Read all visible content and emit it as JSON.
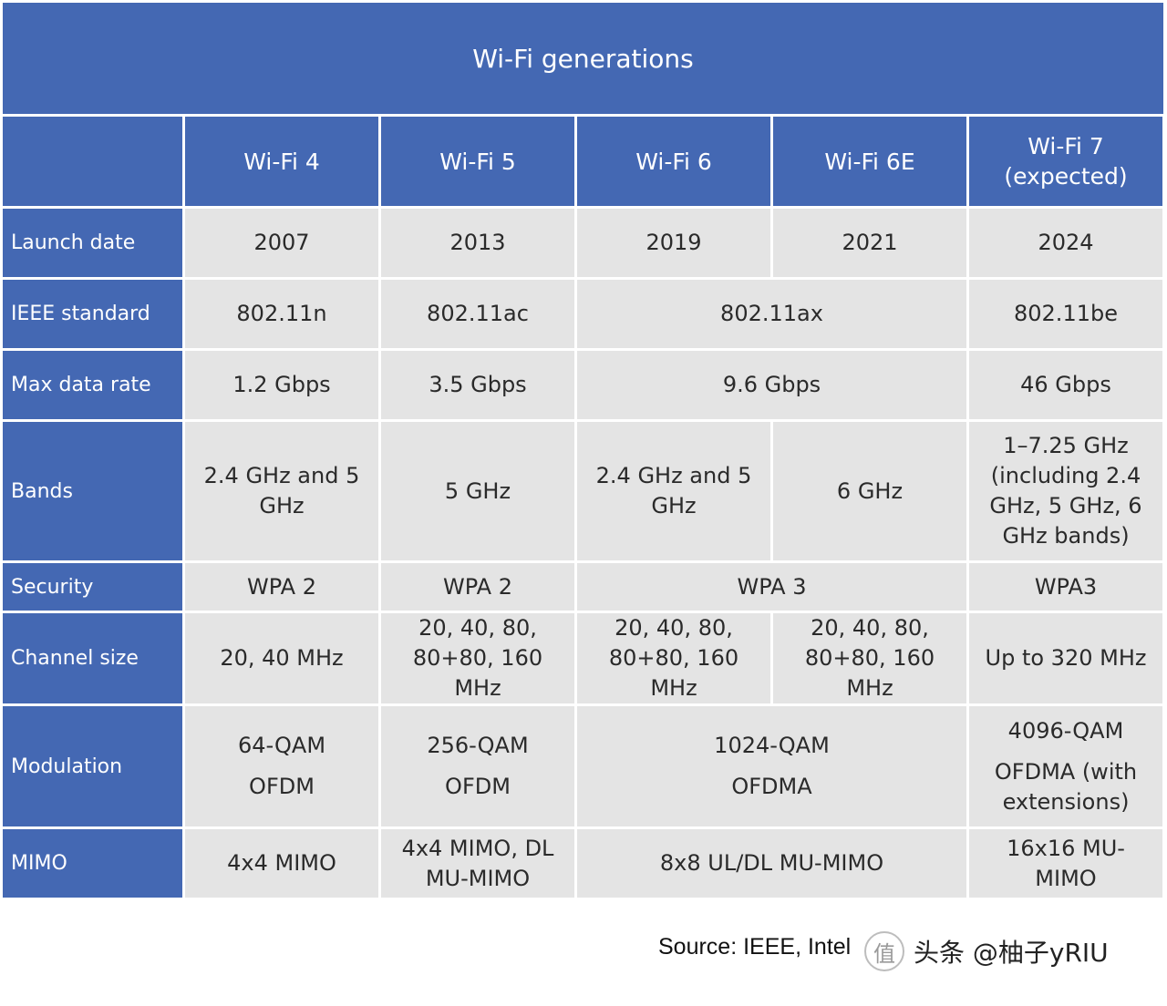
{
  "title": "Wi-Fi generations",
  "columns": [
    "Wi-Fi 4",
    "Wi-Fi 5",
    "Wi-Fi 6",
    "Wi-Fi 6E",
    [
      "Wi-Fi 7",
      "(expected)"
    ]
  ],
  "rows": {
    "launch_date": {
      "label": "Launch date",
      "values": [
        "2007",
        "2013",
        "2019",
        "2021",
        "2024"
      ]
    },
    "ieee_standard": {
      "label": "IEEE standard",
      "values": [
        "802.11n",
        "802.11ac",
        "802.11ax",
        "802.11be"
      ]
    },
    "max_data_rate": {
      "label": "Max data rate",
      "values": [
        "1.2 Gbps",
        "3.5 Gbps",
        "9.6 Gbps",
        "46 Gbps"
      ]
    },
    "bands": {
      "label": "Bands",
      "values": [
        [
          "2.4 GHz and 5",
          "GHz"
        ],
        "5 GHz",
        [
          "2.4 GHz and 5",
          "GHz"
        ],
        "6 GHz",
        [
          "1–7.25 GHz",
          "(including 2.4",
          "GHz, 5 GHz, 6",
          "GHz bands)"
        ]
      ]
    },
    "security": {
      "label": "Security",
      "values": [
        "WPA 2",
        "WPA 2",
        "WPA 3",
        "WPA3"
      ]
    },
    "channel_size": {
      "label": "Channel size",
      "values": [
        "20, 40 MHz",
        [
          "20, 40, 80,",
          "80+80, 160",
          "MHz"
        ],
        [
          "20, 40, 80,",
          "80+80, 160",
          "MHz"
        ],
        [
          "20, 40, 80,",
          "80+80, 160",
          "MHz"
        ],
        "Up to 320 MHz"
      ]
    },
    "modulation": {
      "label": "Modulation",
      "values": [
        [
          "64-QAM",
          "OFDM"
        ],
        [
          "256-QAM",
          "OFDM"
        ],
        [
          "1024-QAM",
          "OFDMA"
        ],
        [
          "4096-QAM",
          "OFDMA (with",
          "extensions)"
        ]
      ]
    },
    "mimo": {
      "label": "MIMO",
      "values": [
        "4x4 MIMO",
        [
          "4x4 MIMO, DL",
          "MU-MIMO"
        ],
        "8x8 UL/DL MU-MIMO",
        [
          "16x16 MU-",
          "MIMO"
        ]
      ]
    }
  },
  "source": "Source: IEEE, Intel",
  "watermark": {
    "logo_glyph": "值",
    "text": "头条 @柚子yRIU"
  },
  "colors": {
    "header_blue": "#4468b3",
    "cell_gray": "#e4e4e4",
    "header_text": "#ffffff",
    "cell_text": "#2a2a2a"
  }
}
